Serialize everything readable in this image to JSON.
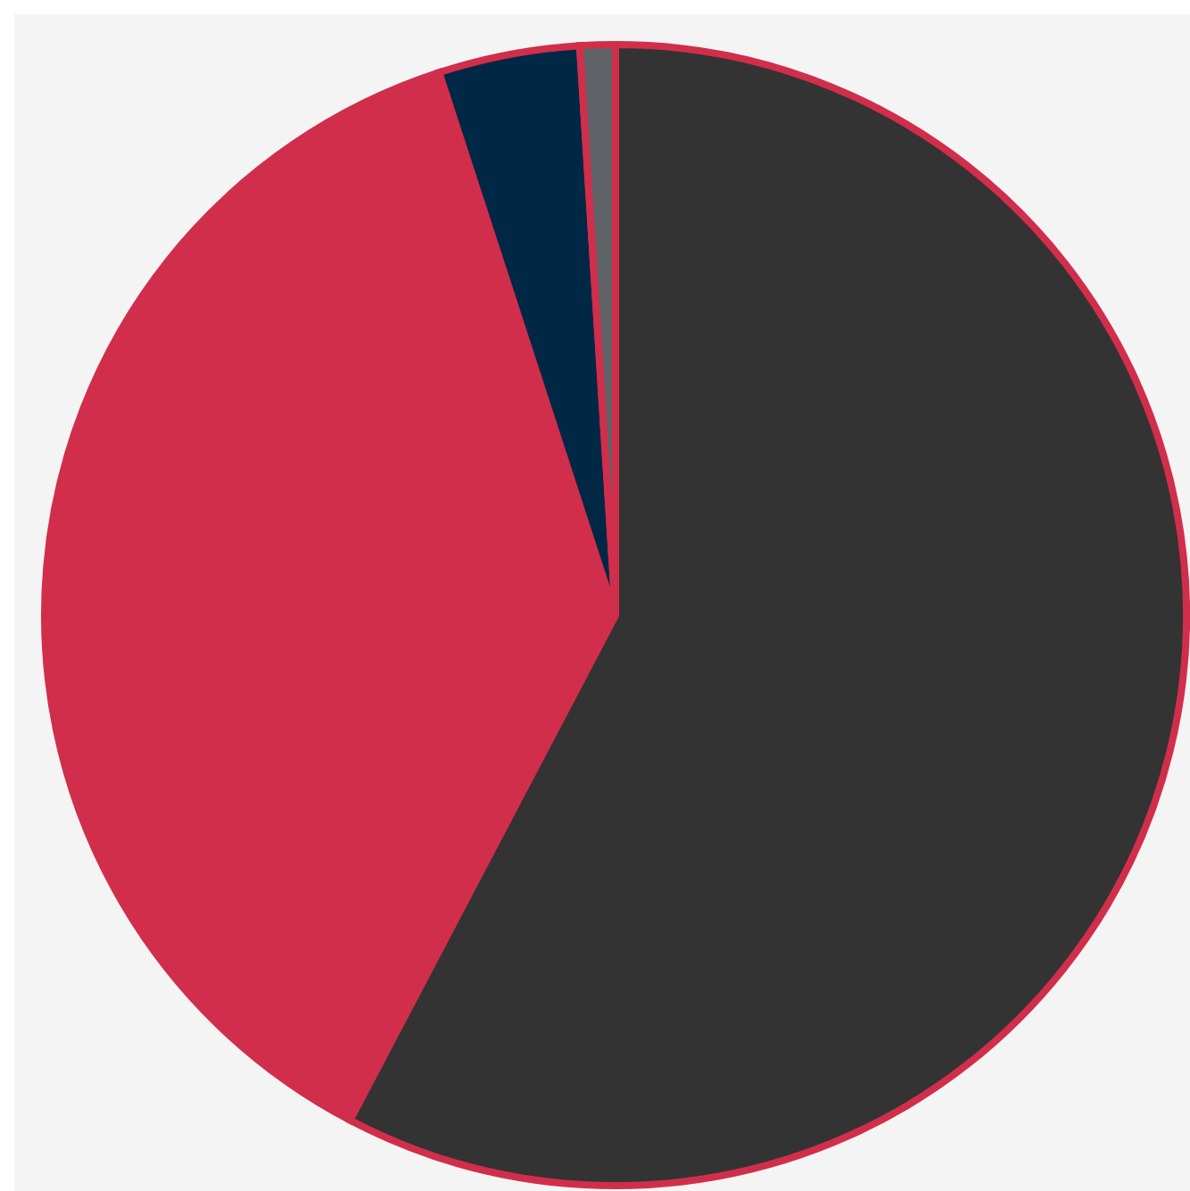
{
  "chart_data": {
    "type": "pie",
    "categories": [
      null,
      null,
      null,
      null
    ],
    "values": [
      57.7,
      37.3,
      4.0,
      1.0
    ],
    "colors": [
      "#333333",
      "#d12e4c",
      "#002845",
      "#5f6266"
    ]
  }
}
